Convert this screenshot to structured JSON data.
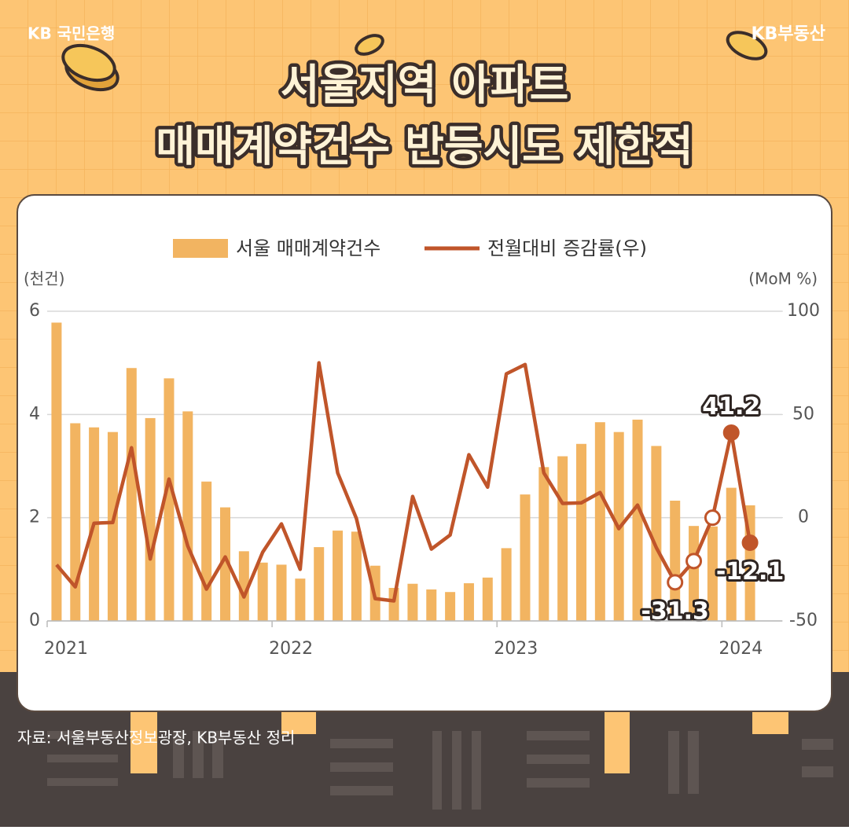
{
  "header": {
    "left_logo": "KB 국민은행",
    "right_logo": "KB부동산",
    "title_lines": [
      "서울지역 아파트",
      "매매계약건수 반등시도 제한적"
    ]
  },
  "chart_data": {
    "type": "bar_line",
    "categories": [
      "2021",
      null,
      null,
      null,
      null,
      null,
      null,
      null,
      null,
      null,
      null,
      null,
      "2022",
      null,
      null,
      null,
      null,
      null,
      null,
      null,
      null,
      null,
      null,
      null,
      "2023",
      null,
      null,
      null,
      null,
      null,
      null,
      null,
      null,
      null,
      null,
      null,
      "2024",
      null
    ],
    "y_label": "(천건)",
    "y2_label": "(MoM %)",
    "ylim": [
      0,
      6
    ],
    "yticks": [
      0,
      2,
      4,
      6
    ],
    "y2lim": [
      -50,
      100
    ],
    "y2ticks": [
      -50,
      0,
      50,
      100
    ],
    "grid": true,
    "series": [
      {
        "name": "서울 매매계약건수",
        "type": "bar",
        "color": "#f2b461",
        "values": [
          5.78,
          3.83,
          3.75,
          3.66,
          4.9,
          3.93,
          4.7,
          4.06,
          2.7,
          2.2,
          1.35,
          1.13,
          1.09,
          0.82,
          1.43,
          1.75,
          1.73,
          1.07,
          0.64,
          0.72,
          0.61,
          0.56,
          0.73,
          0.84,
          1.41,
          2.45,
          2.98,
          3.19,
          3.43,
          3.85,
          3.66,
          3.9,
          3.39,
          2.33,
          1.84,
          1.83,
          2.58,
          2.24
        ]
      },
      {
        "name": "전월대비 증감률(우)",
        "type": "line",
        "axis": "y2",
        "color": "#c0552a",
        "values": [
          -22.8,
          -33.5,
          -2.7,
          -2.3,
          33.9,
          -20,
          18.7,
          -13.7,
          -34.6,
          -19,
          -38.4,
          -16.7,
          -3,
          -25,
          75,
          21.7,
          -0.4,
          -39.2,
          -40.3,
          10.3,
          -15.2,
          -8.4,
          30.5,
          14.8,
          69.7,
          74.2,
          21.7,
          6.9,
          7.2,
          12.2,
          -5.3,
          6.1,
          -14.5,
          -31.3,
          -21,
          0,
          41.2,
          -12.1
        ],
        "value_labels": [
          null,
          null,
          null,
          null,
          null,
          null,
          null,
          null,
          null,
          null,
          null,
          null,
          null,
          null,
          null,
          null,
          null,
          null,
          null,
          null,
          null,
          null,
          null,
          null,
          null,
          null,
          null,
          null,
          null,
          null,
          null,
          null,
          null,
          "-31.3",
          null,
          null,
          "41.2",
          "-12.1"
        ],
        "markers": [
          null,
          null,
          null,
          null,
          null,
          null,
          null,
          null,
          null,
          null,
          null,
          null,
          null,
          null,
          null,
          null,
          null,
          null,
          null,
          null,
          null,
          null,
          null,
          null,
          null,
          null,
          null,
          null,
          null,
          null,
          null,
          null,
          null,
          "hollow",
          "hollow",
          "hollow",
          "filled",
          "filled"
        ]
      }
    ],
    "source": "자료: 서울부동산정보광장, KB부동산 정리"
  }
}
